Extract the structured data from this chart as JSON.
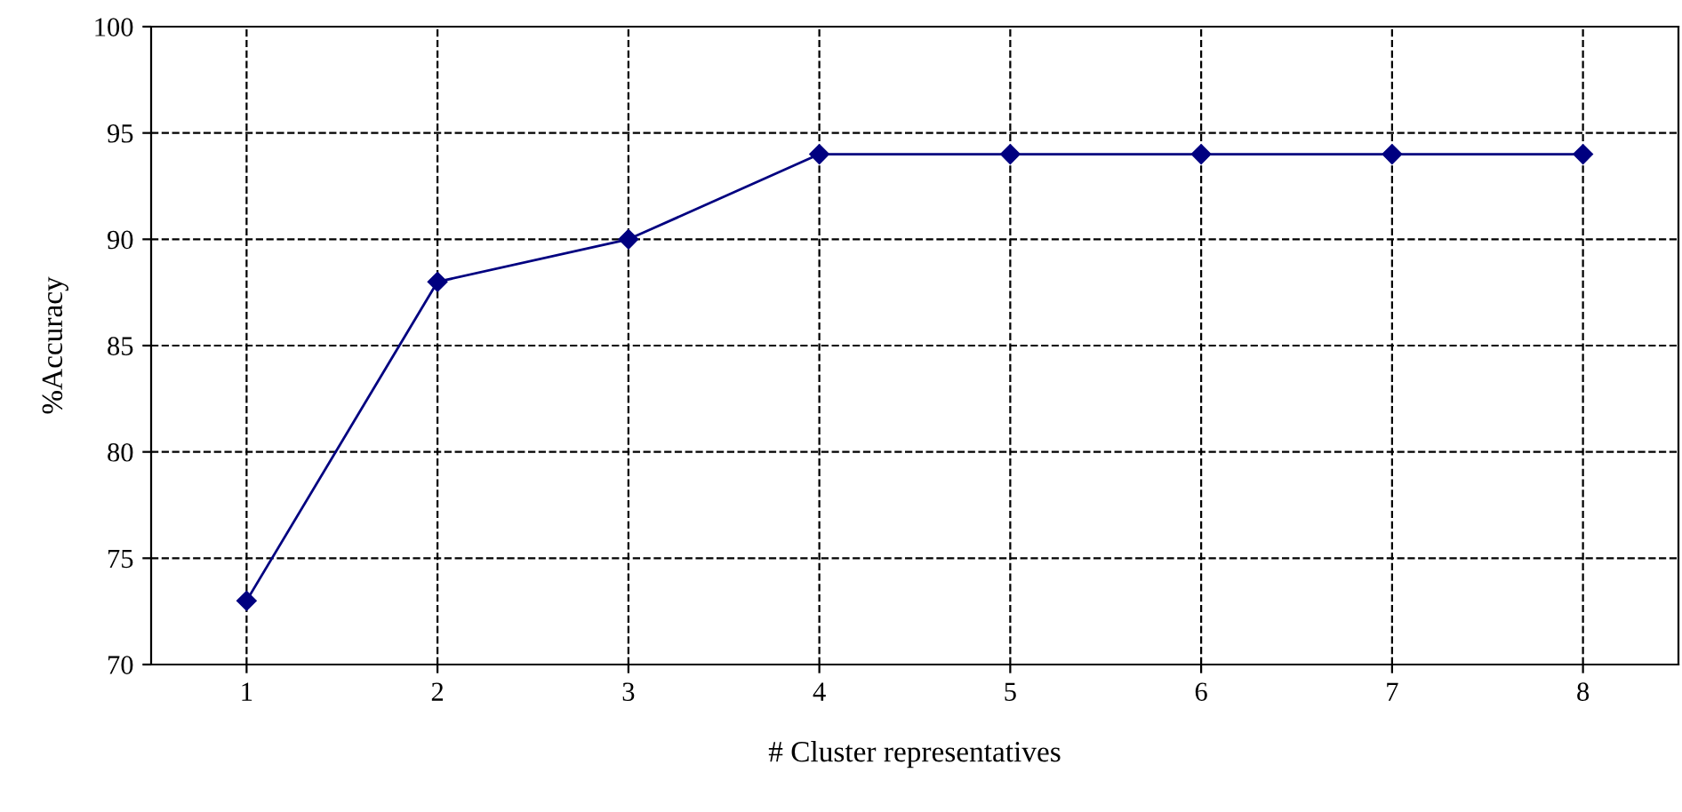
{
  "chart_data": {
    "type": "line",
    "xlabel": "# Cluster representatives",
    "ylabel": "%Accuracy",
    "categories": [
      "1",
      "2",
      "3",
      "4",
      "5",
      "6",
      "7",
      "8"
    ],
    "series": [
      {
        "color": "#000080",
        "values": [
          73,
          88,
          90,
          94,
          94,
          94,
          94,
          94
        ]
      }
    ],
    "ylim": [
      70,
      100
    ],
    "yticks": [
      70,
      75,
      80,
      85,
      90,
      95,
      100
    ],
    "grid": true,
    "marker": "diamond",
    "line_style": "solid"
  }
}
